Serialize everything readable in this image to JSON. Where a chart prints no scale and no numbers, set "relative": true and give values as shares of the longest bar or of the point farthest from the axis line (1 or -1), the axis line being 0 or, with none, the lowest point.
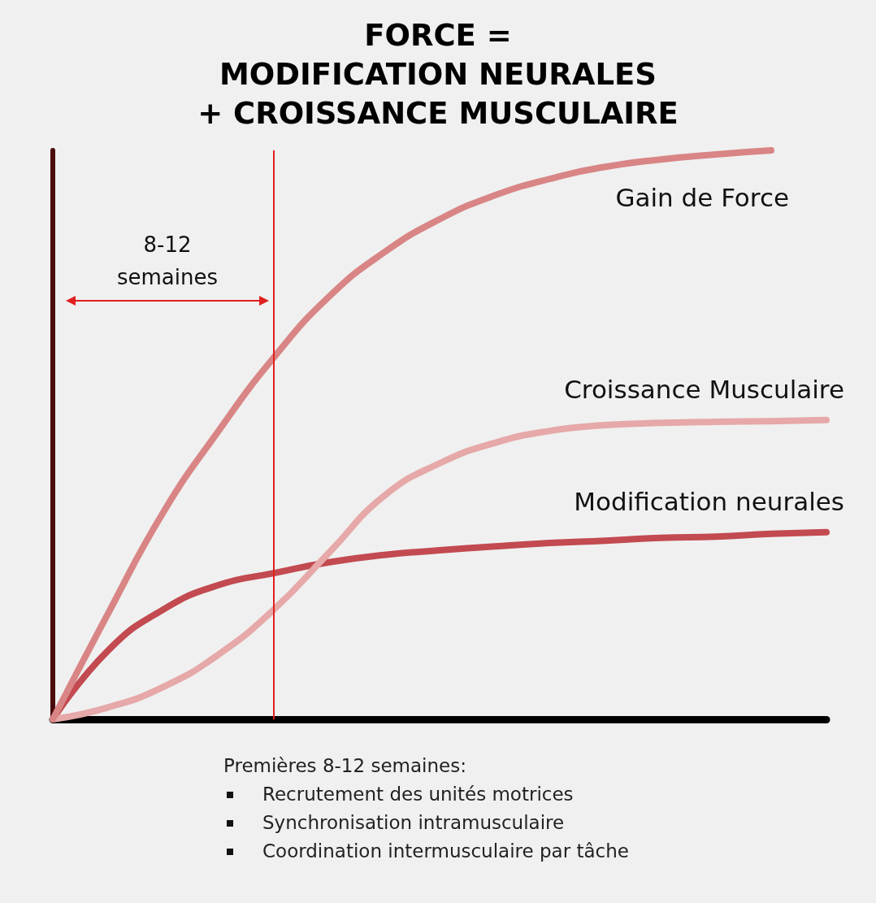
{
  "chart_data": {
    "type": "line",
    "relative": true,
    "title": "FORCE =\nMODIFICATION NEURALES\n+ CROISSANCE MUSCULAIRE",
    "categories": [
      null,
      null,
      null,
      null,
      null,
      null,
      null,
      null,
      null,
      null,
      null,
      null,
      null,
      null,
      null
    ],
    "grid": false,
    "legend": false,
    "marker": "none",
    "line_style": "solid",
    "series": [
      {
        "name": "Gain de Force",
        "color": "#d98585",
        "values": [
          0,
          0.186,
          0.364,
          0.507,
          0.636,
          0.743,
          0.821,
          0.879,
          0.921,
          0.95,
          0.971,
          0.984,
          0.993,
          1,
          null
        ]
      },
      {
        "name": "Croissance Musculaire",
        "color": "#e6a8a8",
        "values": [
          0,
          0.021,
          0.057,
          0.114,
          0.193,
          0.293,
          0.393,
          0.45,
          0.486,
          0.507,
          0.517,
          0.521,
          0.523,
          0.524,
          0.526
        ]
      },
      {
        "name": "Modification neurales",
        "color": "#c24a50",
        "values": [
          0,
          0.121,
          0.193,
          0.236,
          0.257,
          0.276,
          0.289,
          0.297,
          0.304,
          0.31,
          0.314,
          0.319,
          0.321,
          0.326,
          0.329
        ]
      }
    ],
    "annotations": [
      "8-12 semaines",
      "Premières 8-12 semaines:",
      "Recrutement des unités motrices",
      "Synchronisation intramusculaire",
      "Coordination intermusculaire par tâche"
    ]
  }
}
